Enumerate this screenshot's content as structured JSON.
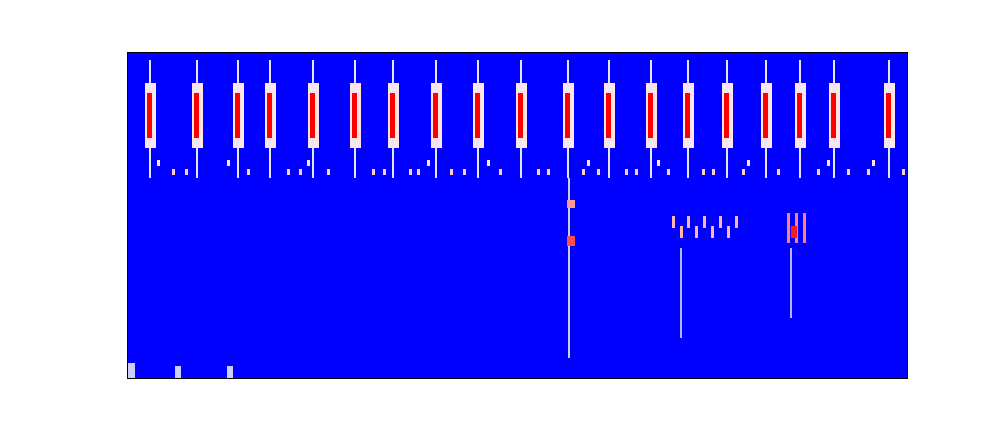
{
  "chart_data": {
    "type": "heatmap",
    "tick_labels": false,
    "xlim": [
      0,
      780
    ],
    "ylim": [
      0,
      326
    ],
    "colors": [
      "#0000ff",
      "#ffffff",
      "#ff0000"
    ],
    "color_range": [
      0,
      1
    ],
    "cells": [
      {
        "x1": 18,
        "x2": 29,
        "y1": 230,
        "y2": 295,
        "value": 0.55
      },
      {
        "x1": 65,
        "x2": 76,
        "y1": 230,
        "y2": 295,
        "value": 0.55
      },
      {
        "x1": 106,
        "x2": 117,
        "y1": 230,
        "y2": 295,
        "value": 0.55
      },
      {
        "x1": 138,
        "x2": 149,
        "y1": 230,
        "y2": 295,
        "value": 0.55
      },
      {
        "x1": 181,
        "x2": 192,
        "y1": 230,
        "y2": 295,
        "value": 0.55
      },
      {
        "x1": 223,
        "x2": 234,
        "y1": 230,
        "y2": 295,
        "value": 0.55
      },
      {
        "x1": 261,
        "x2": 272,
        "y1": 230,
        "y2": 295,
        "value": 0.55
      },
      {
        "x1": 304,
        "x2": 315,
        "y1": 230,
        "y2": 295,
        "value": 0.55
      },
      {
        "x1": 346,
        "x2": 357,
        "y1": 230,
        "y2": 295,
        "value": 0.55
      },
      {
        "x1": 389,
        "x2": 400,
        "y1": 230,
        "y2": 295,
        "value": 0.55
      },
      {
        "x1": 436,
        "x2": 447,
        "y1": 230,
        "y2": 295,
        "value": 0.55
      },
      {
        "x1": 477,
        "x2": 488,
        "y1": 230,
        "y2": 295,
        "value": 0.55
      },
      {
        "x1": 519,
        "x2": 530,
        "y1": 230,
        "y2": 295,
        "value": 0.55
      },
      {
        "x1": 556,
        "x2": 567,
        "y1": 230,
        "y2": 295,
        "value": 0.55
      },
      {
        "x1": 595,
        "x2": 606,
        "y1": 230,
        "y2": 295,
        "value": 0.55
      },
      {
        "x1": 634,
        "x2": 645,
        "y1": 230,
        "y2": 295,
        "value": 0.55
      },
      {
        "x1": 668,
        "x2": 679,
        "y1": 230,
        "y2": 295,
        "value": 0.55
      },
      {
        "x1": 702,
        "x2": 713,
        "y1": 230,
        "y2": 295,
        "value": 0.55
      },
      {
        "x1": 757,
        "x2": 768,
        "y1": 230,
        "y2": 295,
        "value": 0.55
      },
      {
        "x1": 22,
        "x2": 24,
        "y1": 200,
        "y2": 318,
        "value": 0.45
      },
      {
        "x1": 69,
        "x2": 71,
        "y1": 200,
        "y2": 318,
        "value": 0.45
      },
      {
        "x1": 110,
        "x2": 112,
        "y1": 200,
        "y2": 318,
        "value": 0.45
      },
      {
        "x1": 142,
        "x2": 144,
        "y1": 200,
        "y2": 318,
        "value": 0.45
      },
      {
        "x1": 185,
        "x2": 187,
        "y1": 200,
        "y2": 318,
        "value": 0.45
      },
      {
        "x1": 227,
        "x2": 229,
        "y1": 200,
        "y2": 318,
        "value": 0.45
      },
      {
        "x1": 265,
        "x2": 267,
        "y1": 200,
        "y2": 318,
        "value": 0.45
      },
      {
        "x1": 308,
        "x2": 310,
        "y1": 200,
        "y2": 318,
        "value": 0.45
      },
      {
        "x1": 350,
        "x2": 352,
        "y1": 200,
        "y2": 318,
        "value": 0.45
      },
      {
        "x1": 393,
        "x2": 395,
        "y1": 200,
        "y2": 318,
        "value": 0.45
      },
      {
        "x1": 440,
        "x2": 442,
        "y1": 200,
        "y2": 318,
        "value": 0.45
      },
      {
        "x1": 481,
        "x2": 483,
        "y1": 200,
        "y2": 318,
        "value": 0.45
      },
      {
        "x1": 523,
        "x2": 525,
        "y1": 200,
        "y2": 318,
        "value": 0.45
      },
      {
        "x1": 560,
        "x2": 562,
        "y1": 200,
        "y2": 318,
        "value": 0.45
      },
      {
        "x1": 599,
        "x2": 601,
        "y1": 200,
        "y2": 318,
        "value": 0.45
      },
      {
        "x1": 638,
        "x2": 640,
        "y1": 200,
        "y2": 318,
        "value": 0.45
      },
      {
        "x1": 672,
        "x2": 674,
        "y1": 200,
        "y2": 318,
        "value": 0.45
      },
      {
        "x1": 706,
        "x2": 708,
        "y1": 200,
        "y2": 318,
        "value": 0.45
      },
      {
        "x1": 761,
        "x2": 763,
        "y1": 200,
        "y2": 318,
        "value": 0.45
      },
      {
        "x1": 441,
        "x2": 443,
        "y1": 20,
        "y2": 200,
        "value": 0.4
      },
      {
        "x1": 553,
        "x2": 555,
        "y1": 40,
        "y2": 130,
        "value": 0.35
      },
      {
        "x1": 663,
        "x2": 665,
        "y1": 60,
        "y2": 130,
        "value": 0.35
      },
      {
        "x1": 0,
        "x2": 8,
        "y1": 0,
        "y2": 15,
        "value": 0.4
      },
      {
        "x1": 48,
        "x2": 54,
        "y1": 0,
        "y2": 12,
        "value": 0.4
      },
      {
        "x1": 100,
        "x2": 106,
        "y1": 0,
        "y2": 12,
        "value": 0.4
      },
      {
        "x1": 45,
        "x2": 48,
        "y1": 203,
        "y2": 209,
        "value": 0.6
      },
      {
        "x1": 58,
        "x2": 61,
        "y1": 203,
        "y2": 209,
        "value": 0.6
      },
      {
        "x1": 120,
        "x2": 123,
        "y1": 203,
        "y2": 209,
        "value": 0.6
      },
      {
        "x1": 160,
        "x2": 163,
        "y1": 203,
        "y2": 209,
        "value": 0.6
      },
      {
        "x1": 172,
        "x2": 175,
        "y1": 203,
        "y2": 209,
        "value": 0.6
      },
      {
        "x1": 200,
        "x2": 203,
        "y1": 203,
        "y2": 209,
        "value": 0.6
      },
      {
        "x1": 245,
        "x2": 248,
        "y1": 203,
        "y2": 209,
        "value": 0.6
      },
      {
        "x1": 256,
        "x2": 259,
        "y1": 203,
        "y2": 209,
        "value": 0.6
      },
      {
        "x1": 282,
        "x2": 285,
        "y1": 203,
        "y2": 209,
        "value": 0.6
      },
      {
        "x1": 290,
        "x2": 293,
        "y1": 203,
        "y2": 209,
        "value": 0.6
      },
      {
        "x1": 323,
        "x2": 326,
        "y1": 203,
        "y2": 209,
        "value": 0.6
      },
      {
        "x1": 336,
        "x2": 339,
        "y1": 203,
        "y2": 209,
        "value": 0.6
      },
      {
        "x1": 372,
        "x2": 375,
        "y1": 203,
        "y2": 209,
        "value": 0.6
      },
      {
        "x1": 410,
        "x2": 413,
        "y1": 203,
        "y2": 209,
        "value": 0.6
      },
      {
        "x1": 420,
        "x2": 423,
        "y1": 203,
        "y2": 209,
        "value": 0.6
      },
      {
        "x1": 455,
        "x2": 458,
        "y1": 203,
        "y2": 209,
        "value": 0.6
      },
      {
        "x1": 470,
        "x2": 473,
        "y1": 203,
        "y2": 209,
        "value": 0.6
      },
      {
        "x1": 498,
        "x2": 501,
        "y1": 203,
        "y2": 209,
        "value": 0.6
      },
      {
        "x1": 508,
        "x2": 511,
        "y1": 203,
        "y2": 209,
        "value": 0.6
      },
      {
        "x1": 540,
        "x2": 543,
        "y1": 203,
        "y2": 209,
        "value": 0.6
      },
      {
        "x1": 575,
        "x2": 578,
        "y1": 203,
        "y2": 209,
        "value": 0.6
      },
      {
        "x1": 585,
        "x2": 588,
        "y1": 203,
        "y2": 209,
        "value": 0.6
      },
      {
        "x1": 615,
        "x2": 618,
        "y1": 203,
        "y2": 209,
        "value": 0.6
      },
      {
        "x1": 650,
        "x2": 653,
        "y1": 203,
        "y2": 209,
        "value": 0.6
      },
      {
        "x1": 690,
        "x2": 693,
        "y1": 203,
        "y2": 209,
        "value": 0.6
      },
      {
        "x1": 720,
        "x2": 723,
        "y1": 203,
        "y2": 209,
        "value": 0.6
      },
      {
        "x1": 740,
        "x2": 743,
        "y1": 203,
        "y2": 209,
        "value": 0.6
      },
      {
        "x1": 775,
        "x2": 778,
        "y1": 203,
        "y2": 209,
        "value": 0.6
      },
      {
        "x1": 30,
        "x2": 33,
        "y1": 212,
        "y2": 218,
        "value": 0.55
      },
      {
        "x1": 100,
        "x2": 103,
        "y1": 212,
        "y2": 218,
        "value": 0.55
      },
      {
        "x1": 180,
        "x2": 183,
        "y1": 212,
        "y2": 218,
        "value": 0.55
      },
      {
        "x1": 300,
        "x2": 303,
        "y1": 212,
        "y2": 218,
        "value": 0.55
      },
      {
        "x1": 360,
        "x2": 363,
        "y1": 212,
        "y2": 218,
        "value": 0.55
      },
      {
        "x1": 460,
        "x2": 463,
        "y1": 212,
        "y2": 218,
        "value": 0.55
      },
      {
        "x1": 530,
        "x2": 533,
        "y1": 212,
        "y2": 218,
        "value": 0.55
      },
      {
        "x1": 620,
        "x2": 623,
        "y1": 212,
        "y2": 218,
        "value": 0.55
      },
      {
        "x1": 700,
        "x2": 703,
        "y1": 212,
        "y2": 218,
        "value": 0.55
      },
      {
        "x1": 745,
        "x2": 748,
        "y1": 212,
        "y2": 218,
        "value": 0.55
      },
      {
        "x1": 545,
        "x2": 548,
        "y1": 150,
        "y2": 162,
        "value": 0.65
      },
      {
        "x1": 553,
        "x2": 556,
        "y1": 140,
        "y2": 152,
        "value": 0.65
      },
      {
        "x1": 560,
        "x2": 563,
        "y1": 150,
        "y2": 162,
        "value": 0.65
      },
      {
        "x1": 568,
        "x2": 571,
        "y1": 140,
        "y2": 152,
        "value": 0.65
      },
      {
        "x1": 576,
        "x2": 579,
        "y1": 150,
        "y2": 162,
        "value": 0.65
      },
      {
        "x1": 584,
        "x2": 587,
        "y1": 140,
        "y2": 152,
        "value": 0.65
      },
      {
        "x1": 592,
        "x2": 595,
        "y1": 150,
        "y2": 162,
        "value": 0.65
      },
      {
        "x1": 600,
        "x2": 603,
        "y1": 140,
        "y2": 152,
        "value": 0.65
      },
      {
        "x1": 608,
        "x2": 611,
        "y1": 150,
        "y2": 162,
        "value": 0.65
      },
      {
        "x1": 660,
        "x2": 663,
        "y1": 135,
        "y2": 165,
        "value": 0.75
      },
      {
        "x1": 668,
        "x2": 671,
        "y1": 135,
        "y2": 165,
        "value": 0.75
      },
      {
        "x1": 676,
        "x2": 679,
        "y1": 135,
        "y2": 165,
        "value": 0.75
      },
      {
        "x1": 664,
        "x2": 670,
        "y1": 140,
        "y2": 152,
        "value": 0.95
      },
      {
        "x1": 440,
        "x2": 448,
        "y1": 170,
        "y2": 178,
        "value": 0.7
      },
      {
        "x1": 440,
        "x2": 448,
        "y1": 132,
        "y2": 142,
        "value": 0.85
      },
      {
        "x1": 20,
        "x2": 25,
        "y1": 240,
        "y2": 285,
        "value": 1
      },
      {
        "x1": 67,
        "x2": 72,
        "y1": 240,
        "y2": 285,
        "value": 1
      },
      {
        "x1": 108,
        "x2": 113,
        "y1": 240,
        "y2": 285,
        "value": 1
      },
      {
        "x1": 140,
        "x2": 145,
        "y1": 240,
        "y2": 285,
        "value": 1
      },
      {
        "x1": 183,
        "x2": 188,
        "y1": 240,
        "y2": 285,
        "value": 1
      },
      {
        "x1": 225,
        "x2": 230,
        "y1": 240,
        "y2": 285,
        "value": 1
      },
      {
        "x1": 263,
        "x2": 268,
        "y1": 240,
        "y2": 285,
        "value": 1
      },
      {
        "x1": 306,
        "x2": 311,
        "y1": 240,
        "y2": 285,
        "value": 1
      },
      {
        "x1": 348,
        "x2": 353,
        "y1": 240,
        "y2": 285,
        "value": 1
      },
      {
        "x1": 391,
        "x2": 396,
        "y1": 240,
        "y2": 285,
        "value": 1
      },
      {
        "x1": 438,
        "x2": 443,
        "y1": 240,
        "y2": 285,
        "value": 1
      },
      {
        "x1": 479,
        "x2": 484,
        "y1": 240,
        "y2": 285,
        "value": 1
      },
      {
        "x1": 521,
        "x2": 526,
        "y1": 240,
        "y2": 285,
        "value": 1
      },
      {
        "x1": 558,
        "x2": 563,
        "y1": 240,
        "y2": 285,
        "value": 1
      },
      {
        "x1": 597,
        "x2": 602,
        "y1": 240,
        "y2": 285,
        "value": 1
      },
      {
        "x1": 636,
        "x2": 641,
        "y1": 240,
        "y2": 285,
        "value": 1
      },
      {
        "x1": 670,
        "x2": 675,
        "y1": 240,
        "y2": 285,
        "value": 1
      },
      {
        "x1": 704,
        "x2": 709,
        "y1": 240,
        "y2": 285,
        "value": 1
      },
      {
        "x1": 759,
        "x2": 764,
        "y1": 240,
        "y2": 285,
        "value": 1
      }
    ]
  }
}
